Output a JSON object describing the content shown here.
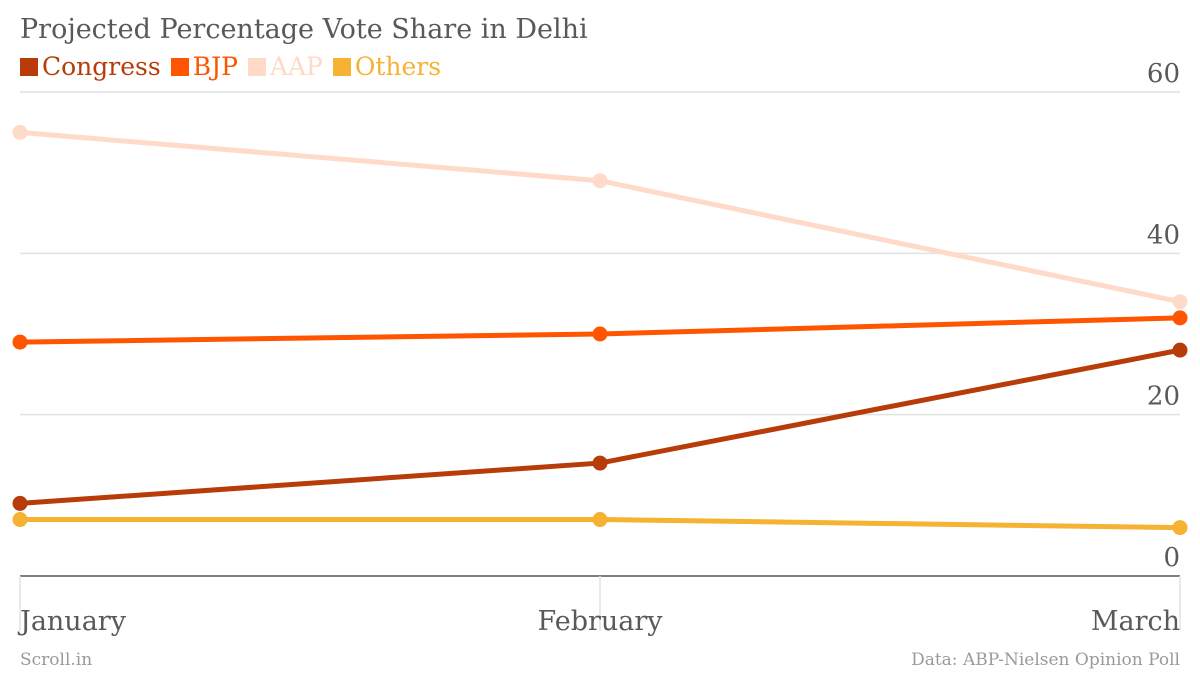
{
  "chart_data": {
    "type": "line",
    "title": "Projected Percentage Vote Share in Delhi",
    "categories": [
      "January",
      "February",
      "March"
    ],
    "series": [
      {
        "name": "Congress",
        "values": [
          9,
          14,
          28
        ],
        "color": "#b83c0a"
      },
      {
        "name": "BJP",
        "values": [
          29,
          30,
          32
        ],
        "color": "#ff5500"
      },
      {
        "name": "AAP",
        "values": [
          55,
          49,
          34
        ],
        "color": "#ffdac8"
      },
      {
        "name": "Others",
        "values": [
          7,
          7,
          6
        ],
        "color": "#f5b233"
      }
    ],
    "yticks": [
      0,
      20,
      40,
      60
    ],
    "ylim": [
      0,
      60
    ],
    "grid": true,
    "legend": "top-left"
  },
  "footer": {
    "source_left": "Scroll.in",
    "source_right": "Data: ABP-Nielsen Opinion Poll"
  }
}
